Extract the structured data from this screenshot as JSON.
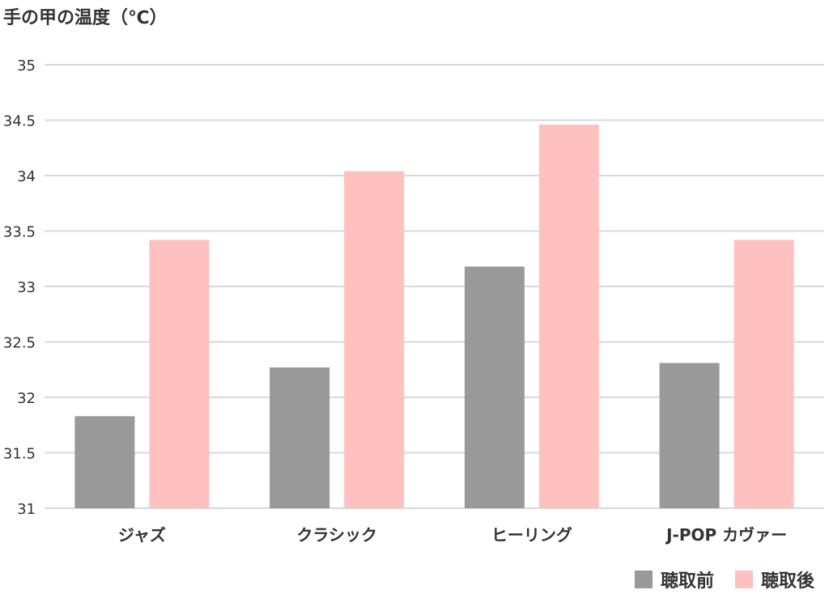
{
  "chart_data": {
    "type": "bar",
    "title": "",
    "ylabel": "手の甲の温度（℃）",
    "xlabel": "",
    "categories": [
      "ジャズ",
      "クラシック",
      "ヒーリング",
      "J-POP カヴァー"
    ],
    "series": [
      {
        "name": "聴取前",
        "color": "#999999",
        "values": [
          31.83,
          32.27,
          33.18,
          32.31
        ]
      },
      {
        "name": "聴取後",
        "color": "#ffc0c0",
        "values": [
          33.42,
          34.04,
          34.46,
          33.42
        ]
      }
    ],
    "ylim": [
      31,
      35
    ],
    "yticks": [
      "31",
      "31.5",
      "32",
      "32.5",
      "33",
      "33.5",
      "34",
      "34.5",
      "35"
    ],
    "grid": true,
    "legend_position": "bottom-right"
  }
}
